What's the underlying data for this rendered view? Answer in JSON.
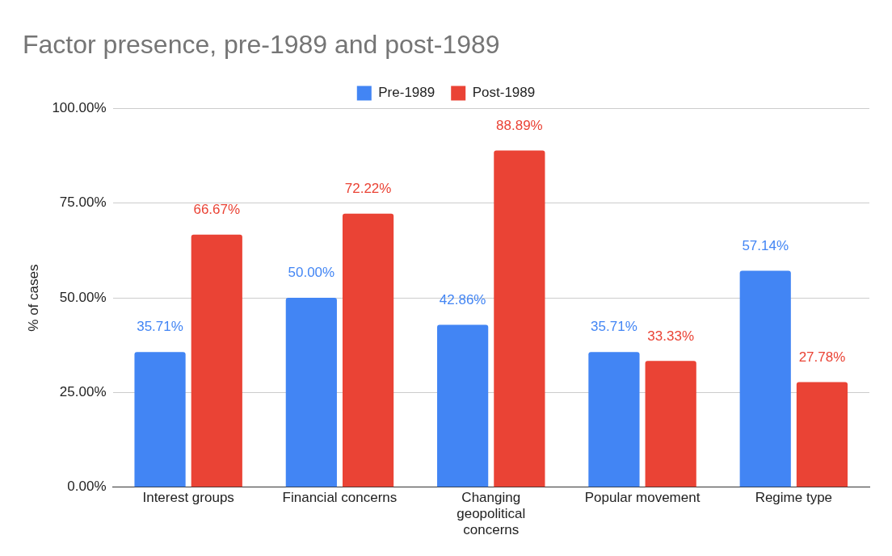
{
  "chart_data": {
    "type": "bar",
    "title": "Factor presence, pre-1989 and post-1989",
    "ylabel": "% of cases",
    "categories": [
      "Interest groups",
      "Financial concerns",
      "Changing geopolitical concerns",
      "Popular movement",
      "Regime type"
    ],
    "series": [
      {
        "name": "Pre-1989",
        "color": "#4285f4",
        "values": [
          35.71,
          50.0,
          42.86,
          35.71,
          57.14
        ],
        "value_labels": [
          "35.71%",
          "50.00%",
          "42.86%",
          "35.71%",
          "57.14%"
        ]
      },
      {
        "name": "Post-1989",
        "color": "#ea4335",
        "values": [
          66.67,
          72.22,
          88.89,
          33.33,
          27.78
        ],
        "value_labels": [
          "66.67%",
          "72.22%",
          "88.89%",
          "33.33%",
          "27.78%"
        ]
      }
    ],
    "ylim": [
      0,
      100
    ],
    "yticks": [
      {
        "value": 0,
        "label": "0.00%"
      },
      {
        "value": 25,
        "label": "25.00%"
      },
      {
        "value": 50,
        "label": "50.00%"
      },
      {
        "value": 75,
        "label": "75.00%"
      },
      {
        "value": 100,
        "label": "100.00%"
      }
    ],
    "grid": "y",
    "legend": "top"
  }
}
